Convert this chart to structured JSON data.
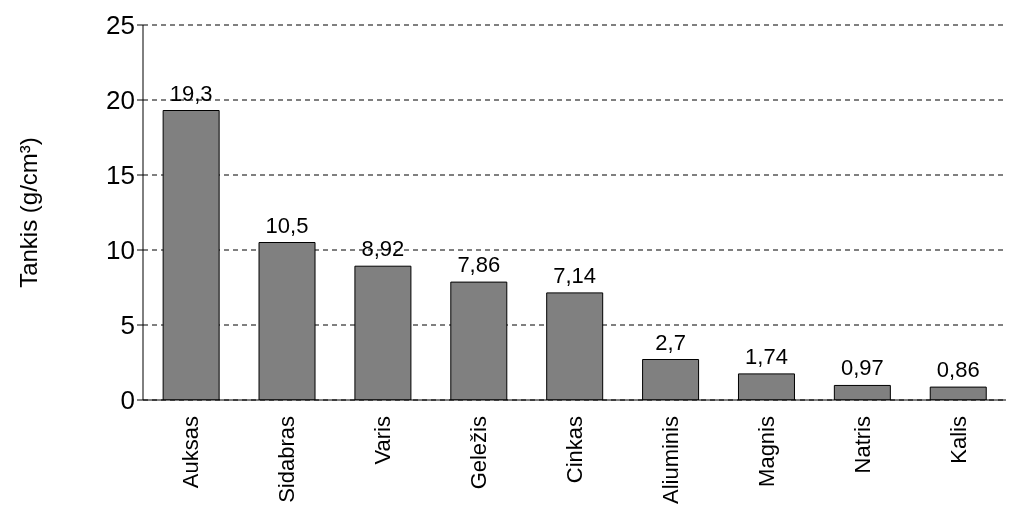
{
  "chart_data": {
    "type": "bar",
    "ylabel": "Tankis (g/cm³)",
    "categories": [
      "Auksas",
      "Sidabras",
      "Varis",
      "Geležis",
      "Cinkas",
      "Aliuminis",
      "Magnis",
      "Natris",
      "Kalis"
    ],
    "values": [
      19.3,
      10.5,
      8.92,
      7.86,
      7.14,
      2.7,
      1.74,
      0.97,
      0.86
    ],
    "value_labels": [
      "19,3",
      "10,5",
      "8,92",
      "7,86",
      "7,14",
      "2,7",
      "1,74",
      "0,97",
      "0,86"
    ],
    "color": "#808080",
    "ylim": [
      0,
      25
    ],
    "yticks": [
      0,
      5,
      10,
      15,
      20,
      25
    ],
    "grid": "y",
    "legend": false
  }
}
